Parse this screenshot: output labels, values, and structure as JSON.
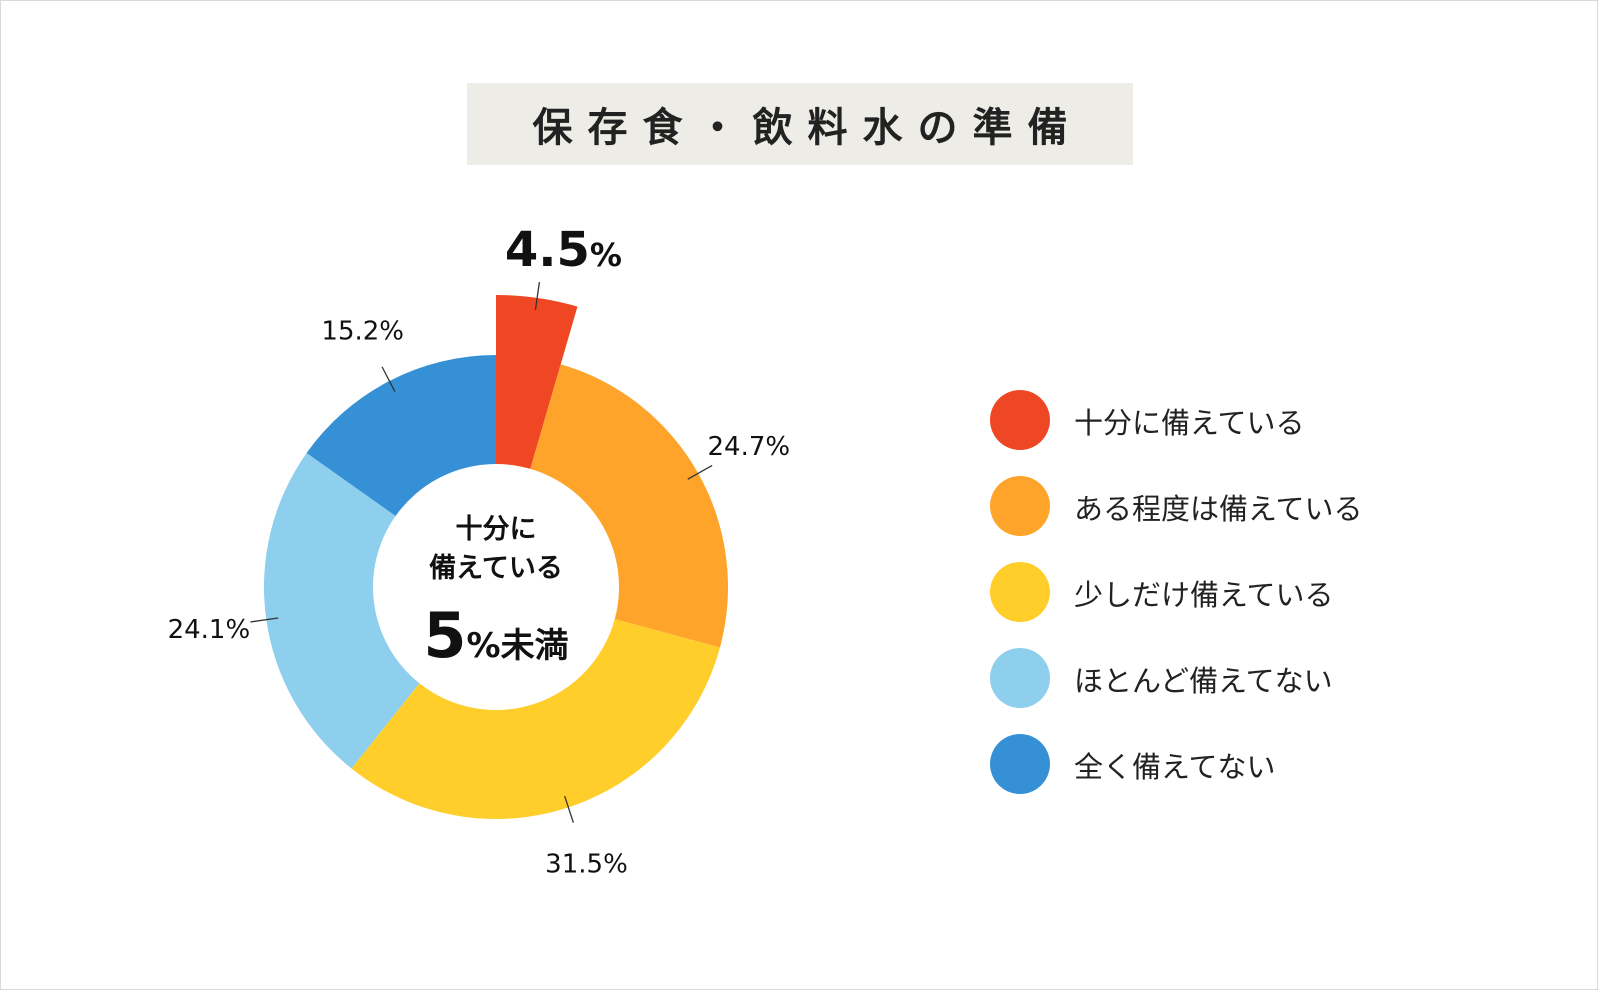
{
  "title": "保存食・飲料水の準備",
  "chart_data": {
    "type": "pie",
    "donut": true,
    "categories": [
      "十分に備えている",
      "ある程度は備えている",
      "少しだけ備えている",
      "ほとんど備えてない",
      "全く備えてない"
    ],
    "values": [
      4.5,
      24.7,
      31.5,
      24.1,
      15.2
    ],
    "value_labels": [
      "4.5%",
      "24.7%",
      "31.5%",
      "24.1%",
      "15.2%"
    ],
    "colors": [
      "#ef4723",
      "#ffa42a",
      "#ffce2a",
      "#8ecfed",
      "#3690d5"
    ],
    "exploded_slice": 0,
    "legend_position": "right"
  },
  "center": {
    "line1": "十分に",
    "line2": "備えている",
    "big_number": "5",
    "suffix": "%未満"
  }
}
